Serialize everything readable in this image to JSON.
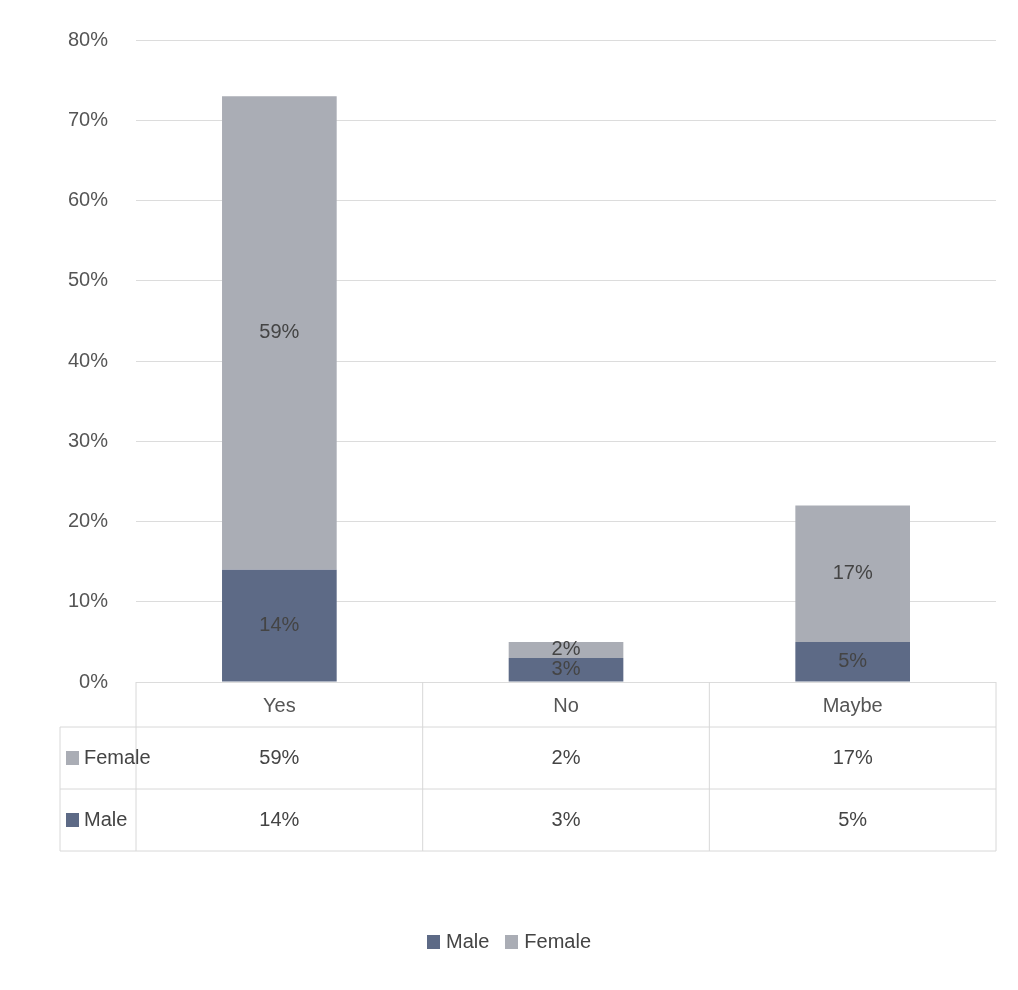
{
  "chart_data": {
    "type": "bar",
    "stacked": true,
    "categories": [
      "Yes",
      "No",
      "Maybe"
    ],
    "series": [
      {
        "name": "Male",
        "color": "#5d6a86",
        "values": [
          14,
          3,
          5
        ],
        "value_labels": [
          "14%",
          "3%",
          "5%"
        ]
      },
      {
        "name": "Female",
        "color": "#aaadb5",
        "values": [
          59,
          2,
          17
        ],
        "value_labels": [
          "59%",
          "2%",
          "17%"
        ]
      }
    ],
    "ylim": [
      0,
      80
    ],
    "yticks": [
      {
        "value": 0,
        "label": "0%"
      },
      {
        "value": 10,
        "label": "10%"
      },
      {
        "value": 20,
        "label": "20%"
      },
      {
        "value": 30,
        "label": "30%"
      },
      {
        "value": 40,
        "label": "40%"
      },
      {
        "value": 50,
        "label": "50%"
      },
      {
        "value": 60,
        "label": "60%"
      },
      {
        "value": 70,
        "label": "70%"
      },
      {
        "value": 80,
        "label": "80%"
      }
    ],
    "grid": "y",
    "legend": "bottom"
  }
}
